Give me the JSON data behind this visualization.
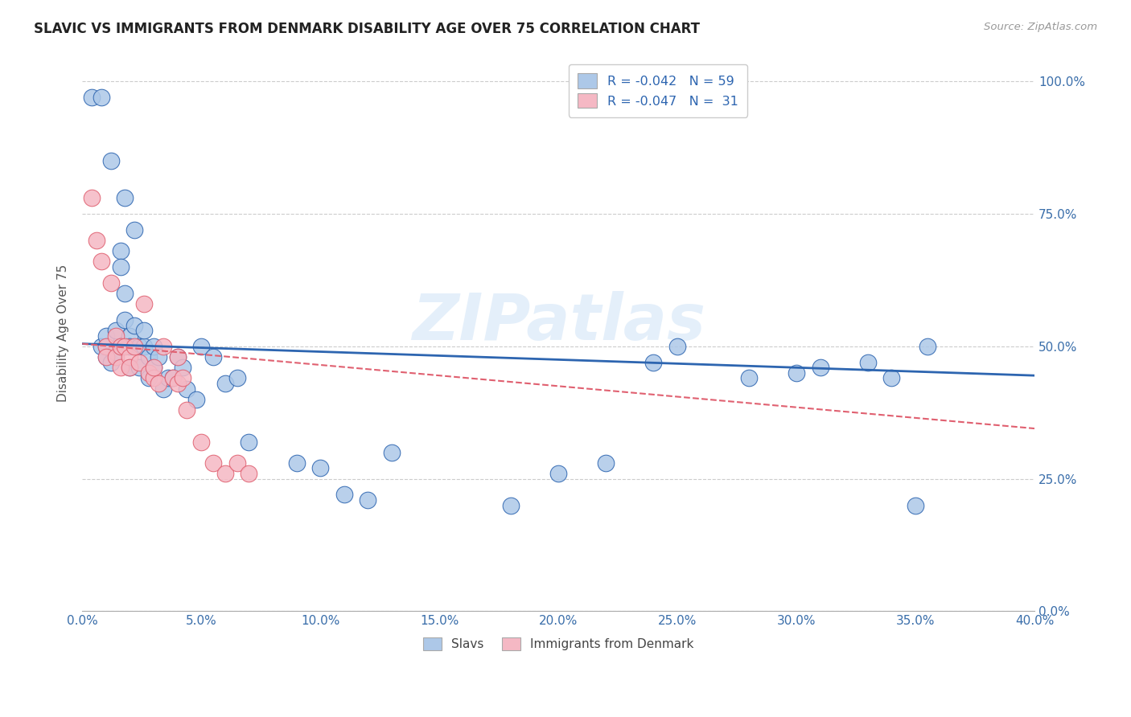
{
  "title": "SLAVIC VS IMMIGRANTS FROM DENMARK DISABILITY AGE OVER 75 CORRELATION CHART",
  "source": "Source: ZipAtlas.com",
  "ylabel": "Disability Age Over 75",
  "yticks": [
    "0.0%",
    "25.0%",
    "50.0%",
    "75.0%",
    "100.0%"
  ],
  "ytick_vals": [
    0.0,
    0.25,
    0.5,
    0.75,
    1.0
  ],
  "xtick_vals": [
    0.0,
    0.05,
    0.1,
    0.15,
    0.2,
    0.25,
    0.3,
    0.35,
    0.4
  ],
  "xtick_labels": [
    "0.0%",
    "5.0%",
    "10.0%",
    "15.0%",
    "20.0%",
    "25.0%",
    "30.0%",
    "35.0%",
    "40.0%"
  ],
  "xlim": [
    0.0,
    0.4
  ],
  "ylim": [
    0.0,
    1.05
  ],
  "legend_label1": "R = -0.042   N = 59",
  "legend_label2": "R = -0.047   N =  31",
  "legend_sublabel1": "Slavs",
  "legend_sublabel2": "Immigrants from Denmark",
  "color_blue": "#adc8e8",
  "color_pink": "#f5b8c4",
  "line_color_blue": "#2d65b0",
  "line_color_pink": "#e06070",
  "watermark": "ZIPatlas",
  "slavs_x": [
    0.004,
    0.008,
    0.008,
    0.01,
    0.01,
    0.01,
    0.012,
    0.012,
    0.014,
    0.014,
    0.016,
    0.016,
    0.016,
    0.018,
    0.018,
    0.018,
    0.02,
    0.02,
    0.02,
    0.022,
    0.022,
    0.024,
    0.024,
    0.026,
    0.026,
    0.028,
    0.028,
    0.03,
    0.03,
    0.032,
    0.034,
    0.036,
    0.038,
    0.04,
    0.042,
    0.044,
    0.048,
    0.05,
    0.055,
    0.06,
    0.065,
    0.07,
    0.09,
    0.1,
    0.11,
    0.12,
    0.13,
    0.18,
    0.2,
    0.22,
    0.24,
    0.25,
    0.28,
    0.3,
    0.31,
    0.33,
    0.34,
    0.35,
    0.355
  ],
  "slavs_y": [
    0.97,
    0.97,
    0.5,
    0.48,
    0.5,
    0.52,
    0.47,
    0.85,
    0.49,
    0.53,
    0.68,
    0.65,
    0.5,
    0.6,
    0.55,
    0.78,
    0.52,
    0.5,
    0.46,
    0.54,
    0.72,
    0.5,
    0.46,
    0.5,
    0.53,
    0.48,
    0.44,
    0.5,
    0.46,
    0.48,
    0.42,
    0.44,
    0.44,
    0.48,
    0.46,
    0.42,
    0.4,
    0.5,
    0.48,
    0.43,
    0.44,
    0.32,
    0.28,
    0.27,
    0.22,
    0.21,
    0.3,
    0.2,
    0.26,
    0.28,
    0.47,
    0.5,
    0.44,
    0.45,
    0.46,
    0.47,
    0.44,
    0.2,
    0.5
  ],
  "denmark_x": [
    0.004,
    0.006,
    0.008,
    0.01,
    0.01,
    0.012,
    0.014,
    0.014,
    0.016,
    0.016,
    0.018,
    0.02,
    0.02,
    0.022,
    0.024,
    0.026,
    0.028,
    0.03,
    0.03,
    0.032,
    0.034,
    0.038,
    0.04,
    0.04,
    0.042,
    0.044,
    0.05,
    0.055,
    0.06,
    0.065,
    0.07
  ],
  "denmark_y": [
    0.78,
    0.7,
    0.66,
    0.5,
    0.48,
    0.62,
    0.52,
    0.48,
    0.5,
    0.46,
    0.5,
    0.48,
    0.46,
    0.5,
    0.47,
    0.58,
    0.45,
    0.44,
    0.46,
    0.43,
    0.5,
    0.44,
    0.43,
    0.48,
    0.44,
    0.38,
    0.32,
    0.28,
    0.26,
    0.28,
    0.26
  ]
}
